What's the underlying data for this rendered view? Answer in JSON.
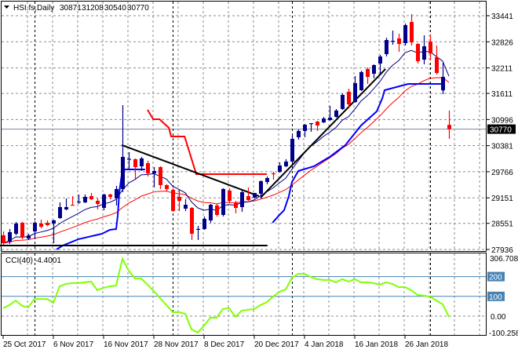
{
  "header": {
    "symbol": "HSI.fs,Daily",
    "open": "30871",
    "high": "31208",
    "low": "30540",
    "close": "30770",
    "arrow_icon": "triangle-down"
  },
  "price_axis": {
    "labels": [
      "33441",
      "32826",
      "32211",
      "31611",
      "30996",
      "30381",
      "29766",
      "29151",
      "28551",
      "27936"
    ],
    "current_price_label": "30770",
    "current_price": 30770,
    "max": 33441,
    "min": 27936
  },
  "cci": {
    "title": "CCI(40)",
    "value": "-4.4001",
    "axis_top": "306.7083",
    "axis_bottom": "-100.258",
    "level_labels": [
      "200",
      "100",
      "0.00"
    ],
    "levels": [
      200,
      100
    ],
    "max": 306.7083,
    "min": -100.258,
    "values": [
      40,
      56,
      79,
      52,
      44,
      87,
      87,
      87,
      67,
      151,
      163,
      167,
      167,
      171,
      175,
      131,
      143,
      151,
      155,
      290,
      230,
      190,
      190,
      159,
      127,
      91,
      56,
      20,
      20,
      12,
      -67,
      -83,
      -48,
      -8,
      -8,
      36,
      40,
      -4,
      28,
      32,
      36,
      56,
      71,
      99,
      123,
      135,
      194,
      214,
      214,
      198,
      187,
      183,
      183,
      171,
      187,
      175,
      187,
      171,
      171,
      167,
      159,
      171,
      163,
      147,
      147,
      131,
      107,
      103,
      99,
      79,
      60,
      -4.4
    ]
  },
  "date_labels": [
    {
      "text": "25 Oct 2017",
      "index": 1
    },
    {
      "text": "6 Nov 2017",
      "index": 9
    },
    {
      "text": "16 Nov 2017",
      "index": 17
    },
    {
      "text": "28 Nov 2017",
      "index": 25
    },
    {
      "text": "8 Dec 2017",
      "index": 33
    },
    {
      "text": "20 Dec 2017",
      "index": 41
    },
    {
      "text": "4 Jan 2018",
      "index": 49
    },
    {
      "text": "16 Jan 2018",
      "index": 57
    },
    {
      "text": "26 Jan 2018",
      "index": 65
    }
  ],
  "period_separators": [
    6,
    28,
    47,
    69
  ],
  "colors": {
    "bull": "#00008b",
    "bear": "#ff0000",
    "ma_fast": "#000080",
    "ma_slow": "#ff0000",
    "band_blue": "#0000ff",
    "band_red": "#ff0000",
    "cci": "#80ff00",
    "level": "#4682b4",
    "trendline": "#000000",
    "grid": "#8c8c8c"
  },
  "chart_data": {
    "type": "candlestick",
    "symbol": "HSI.fs",
    "timeframe": "Daily",
    "ylim": [
      27936,
      33441
    ],
    "ma_periods": {
      "fast": 8,
      "slow": 21
    },
    "candles": [
      [
        28269,
        28361,
        28047,
        28084
      ],
      [
        28121,
        28417,
        28066,
        28343
      ],
      [
        28306,
        28583,
        28269,
        28546
      ],
      [
        28565,
        28583,
        28177,
        28214
      ],
      [
        28195,
        28306,
        28158,
        28269
      ],
      [
        28361,
        28601,
        28177,
        28565
      ],
      [
        28546,
        28638,
        28435,
        28472
      ],
      [
        28565,
        28620,
        28491,
        28509
      ],
      [
        28546,
        28638,
        28084,
        28620
      ],
      [
        28675,
        29045,
        28657,
        28934
      ],
      [
        28878,
        29137,
        28860,
        28934
      ],
      [
        28989,
        29192,
        28971,
        28971
      ],
      [
        29045,
        29230,
        29008,
        29063
      ],
      [
        29045,
        29230,
        29026,
        29174
      ],
      [
        29192,
        29267,
        29100,
        29118
      ],
      [
        29082,
        29137,
        28878,
        29008
      ],
      [
        28915,
        29248,
        28860,
        29230
      ],
      [
        29230,
        29248,
        29118,
        29174
      ],
      [
        29137,
        29433,
        28971,
        29359
      ],
      [
        29359,
        31335,
        29285,
        30116
      ],
      [
        30061,
        30227,
        29839,
        30070
      ],
      [
        30061,
        30079,
        29599,
        29876
      ],
      [
        29894,
        30116,
        29784,
        30079
      ],
      [
        29968,
        30024,
        29654,
        29728
      ],
      [
        29728,
        29876,
        29396,
        29784
      ],
      [
        29876,
        29894,
        29359,
        29451
      ],
      [
        29451,
        29470,
        29304,
        29359
      ],
      [
        29340,
        29377,
        28823,
        28842
      ],
      [
        29174,
        29340,
        28842,
        29082
      ],
      [
        28897,
        29119,
        28842,
        28989
      ],
      [
        28915,
        28934,
        28158,
        28306
      ],
      [
        28417,
        28491,
        28158,
        28420
      ],
      [
        28417,
        28712,
        28398,
        28657
      ],
      [
        28620,
        29008,
        28565,
        28989
      ],
      [
        28971,
        29008,
        28712,
        28749
      ],
      [
        28749,
        29377,
        28712,
        29359
      ],
      [
        29322,
        29377,
        29026,
        29082
      ],
      [
        29045,
        29082,
        28786,
        28915
      ],
      [
        28934,
        29322,
        28823,
        29285
      ],
      [
        29192,
        29396,
        29082,
        29100
      ],
      [
        29156,
        29267,
        29137,
        29267
      ],
      [
        29248,
        29562,
        29137,
        29544
      ],
      [
        29525,
        29654,
        29470,
        29617
      ],
      [
        29728,
        29765,
        29580,
        29710
      ],
      [
        29765,
        29987,
        29747,
        29913
      ],
      [
        29894,
        30061,
        29876,
        30006
      ],
      [
        30006,
        30615,
        29987,
        30541
      ],
      [
        30578,
        30763,
        30522,
        30726
      ],
      [
        30726,
        30892,
        30578,
        30873
      ],
      [
        30892,
        30910,
        30707,
        30910
      ],
      [
        30947,
        30966,
        30726,
        30855
      ],
      [
        30929,
        31058,
        30910,
        31020
      ],
      [
        30984,
        31317,
        30966,
        31040
      ],
      [
        31058,
        31243,
        31040,
        31207
      ],
      [
        31243,
        31612,
        31224,
        31575
      ],
      [
        31649,
        31723,
        31261,
        31353
      ],
      [
        31409,
        32018,
        31390,
        31852
      ],
      [
        31686,
        32147,
        31667,
        32111
      ],
      [
        32185,
        32222,
        31834,
        32000
      ],
      [
        32074,
        32296,
        31963,
        32277
      ],
      [
        32314,
        32517,
        32056,
        32480
      ],
      [
        32536,
        32923,
        32480,
        32868
      ],
      [
        32831,
        33090,
        32757,
        32850
      ],
      [
        32905,
        33016,
        32591,
        32776
      ],
      [
        32794,
        33256,
        32739,
        33219
      ],
      [
        33293,
        33478,
        32739,
        32813
      ],
      [
        32776,
        32794,
        32314,
        32369
      ],
      [
        32406,
        32979,
        32296,
        32720
      ],
      [
        32831,
        32997,
        32388,
        32554
      ],
      [
        32462,
        32739,
        32056,
        32092
      ],
      [
        31686,
        32332,
        31594,
        32000
      ],
      [
        30871,
        31208,
        30540,
        30770
      ]
    ],
    "band_blue_segments": [
      [
        [
          9.5,
          27937
        ],
        [
          10.5,
          28029
        ],
        [
          13,
          28177
        ],
        [
          16.75,
          28306
        ],
        [
          18,
          28398
        ],
        [
          19,
          28417
        ],
        [
          19.25,
          28731
        ],
        [
          19.5,
          29285
        ],
        [
          20,
          29820
        ],
        [
          23.6,
          29820
        ]
      ],
      [
        [
          43.9,
          28565
        ],
        [
          44.9,
          28731
        ],
        [
          45.75,
          28860
        ],
        [
          46.5,
          29192
        ],
        [
          47,
          29525
        ],
        [
          48,
          29784
        ],
        [
          50.5,
          29894
        ],
        [
          53,
          30116
        ],
        [
          55.5,
          30393
        ],
        [
          58,
          30855
        ],
        [
          60.5,
          31187
        ],
        [
          61.4,
          31501
        ],
        [
          61.75,
          31686
        ],
        [
          65.5,
          31834
        ],
        [
          70.9,
          31834
        ],
        [
          71.1,
          31667
        ]
      ]
    ],
    "band_red_segments": [
      [
        [
          24,
          31224
        ],
        [
          24.9,
          31003
        ],
        [
          25.9,
          31003
        ],
        [
          27.4,
          30800
        ],
        [
          27.75,
          30596
        ],
        [
          29.9,
          30596
        ],
        [
          31.1,
          30024
        ],
        [
          31.75,
          29710
        ],
        [
          43,
          29710
        ]
      ]
    ],
    "trendlines": [
      [
        [
          19.9,
          30393
        ],
        [
          41.75,
          29192
        ]
      ],
      [
        [
          42,
          29156
        ],
        [
          61.9,
          32185
        ]
      ],
      [
        [
          0.5,
          28029
        ],
        [
          43.1,
          28029
        ]
      ]
    ]
  }
}
